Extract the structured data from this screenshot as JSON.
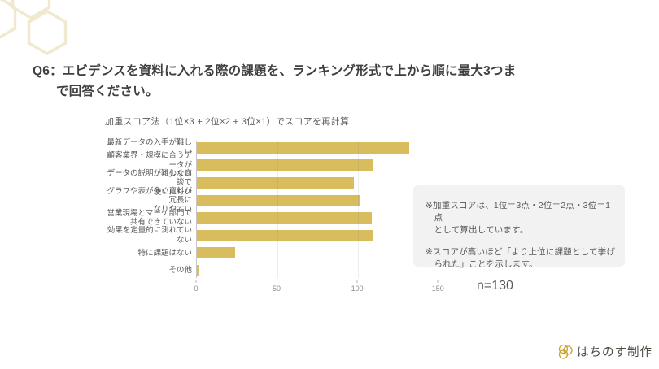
{
  "page": {
    "title_line1": "Q6：エビデンスを資料に入れる際の課題を、ランキング形式で上から順に最大3つま",
    "title_line2": "で回答ください。"
  },
  "chart": {
    "title": "加重スコア法（1位×3 + 2位×2 + 3位×1）でスコアを再計算",
    "sample_size": "n=130"
  },
  "chart_data": {
    "type": "bar",
    "orientation": "horizontal",
    "title": "加重スコア法（1位×3 + 2位×2 + 3位×1）でスコアを再計算",
    "categories": [
      "最新データの入手が難しい",
      "顧客業界・規模に合うデータが\n少ない",
      "データの説明が難しく商談で\n使いにくい",
      "グラフや表が多く資料が冗長に\nなりやすい",
      "営業現場とマーケ部門で\n共有できていない",
      "効果を定量的に測れていない",
      "特に課題はない",
      "その他"
    ],
    "values": [
      132,
      110,
      98,
      102,
      109,
      110,
      24,
      2
    ],
    "xlabel": "",
    "ylabel": "",
    "xlim": [
      0,
      161
    ],
    "xticks": [
      0,
      50,
      100,
      150
    ],
    "grid": true,
    "legend": false,
    "bar_color": "#d9bc5e",
    "sample_size": "n=130"
  },
  "notes": {
    "items": [
      "※加重スコアは、1位＝3点・2位＝2点・3位＝1点\nとして算出しています。",
      "※スコアが高いほど「より上位に課題として挙げ\nられた」ことを示します。"
    ]
  },
  "footer": {
    "brand": "はちのす制作"
  },
  "colors": {
    "bar": "#d9bc5e",
    "deco_hex": "#f1e9cf",
    "logo_gold": "#c9a22d",
    "title_text": "#3f3f3f",
    "body_text": "#595959",
    "notes_bg": "#f2f2f2"
  }
}
